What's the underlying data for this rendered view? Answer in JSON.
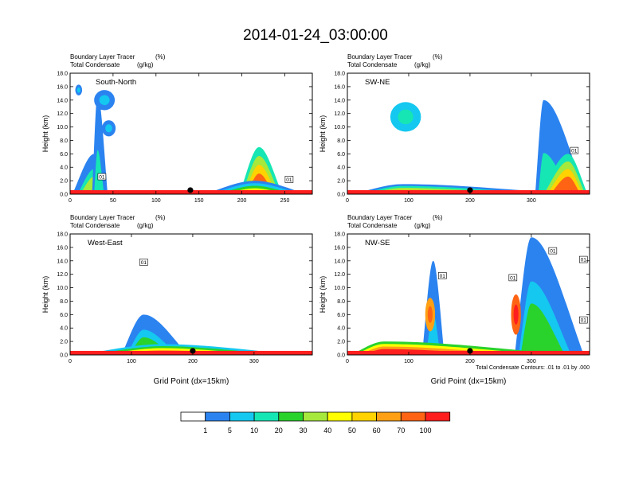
{
  "title": "2014-01-24_03:00:00",
  "colors": {
    "scale": [
      "#ffffff",
      "#2b83f0",
      "#14c8f0",
      "#16e6b4",
      "#2ad22c",
      "#a6e83c",
      "#ffff00",
      "#ffd200",
      "#ffa014",
      "#ff6414",
      "#ff1e1e"
    ],
    "contour": "#000000",
    "frame": "#000000"
  },
  "colorbar": {
    "labels": [
      "1",
      "5",
      "10",
      "20",
      "30",
      "40",
      "50",
      "60",
      "70",
      "100"
    ]
  },
  "footnote": "Total Condensate Contours: .01 to .01 by .000",
  "chart_data": [
    {
      "type": "heatmap",
      "name": "South-North",
      "label": "South-North",
      "subtitle_left_1": "Boundary Layer Tracer",
      "subtitle_right_1": "(%)",
      "subtitle_left_2": "Total Condensate",
      "subtitle_right_2": "(g/kg)",
      "ylabel": "Height (km)",
      "xlabel": "",
      "xlim": [
        0,
        282
      ],
      "ylim": [
        0,
        18
      ],
      "xticks": [
        "0",
        "50",
        "100",
        "150",
        "200",
        "250"
      ],
      "xtick_values": [
        0,
        50,
        100,
        150,
        200,
        250
      ],
      "yticks": [
        "0.0",
        "2.0",
        "4.0",
        "6.0",
        "8.0",
        "10.0",
        "12.0",
        "14.0",
        "16.0",
        "18.0"
      ],
      "marker_x": 140,
      "plumes": [
        {
          "x0": 0,
          "x1": 45,
          "top": 6.0,
          "peak": 28,
          "level": 5
        },
        {
          "x0": 25,
          "x1": 45,
          "top": 15.0,
          "peak": 32,
          "level": 3
        },
        {
          "x0": 195,
          "x1": 250,
          "top": 7.0,
          "peak": 220,
          "level": 9
        },
        {
          "x0": 150,
          "x1": 282,
          "top": 2.0,
          "peak": 215,
          "level": 6
        }
      ],
      "blobs": [
        {
          "cx": 10,
          "cy": 15.5,
          "rx": 4,
          "ry": 0.8,
          "level": 1
        },
        {
          "cx": 40,
          "cy": 14.0,
          "rx": 12,
          "ry": 1.5,
          "level": 1
        },
        {
          "cx": 45,
          "cy": 9.8,
          "rx": 8,
          "ry": 1.2,
          "level": 1
        }
      ],
      "contour_labels": [
        {
          "x": 37,
          "y": 2.6,
          "text": "01"
        },
        {
          "x": 255,
          "y": 2.2,
          "text": "01"
        }
      ]
    },
    {
      "type": "heatmap",
      "name": "SW-NE",
      "label": "SW-NE",
      "subtitle_left_1": "Boundary Layer Tracer",
      "subtitle_right_1": "(%)",
      "subtitle_left_2": "Total Condensate",
      "subtitle_right_2": "(g/kg)",
      "ylabel": "Height (km)",
      "xlabel": "",
      "xlim": [
        0,
        395
      ],
      "ylim": [
        0,
        18
      ],
      "xticks": [
        "0",
        "100",
        "200",
        "300"
      ],
      "xtick_values": [
        0,
        100,
        200,
        300
      ],
      "yticks": [
        "0.0",
        "2.0",
        "4.0",
        "6.0",
        "8.0",
        "10.0",
        "12.0",
        "14.0",
        "16.0",
        "18.0"
      ],
      "marker_x": 200,
      "plumes": [
        {
          "x0": 305,
          "x1": 395,
          "top": 14.0,
          "peak": 320,
          "level": 3
        },
        {
          "x0": 310,
          "x1": 395,
          "top": 6.0,
          "peak": 360,
          "level": 9
        },
        {
          "x0": 0,
          "x1": 395,
          "top": 1.5,
          "peak": 90,
          "level": 7
        }
      ],
      "blobs": [
        {
          "cx": 95,
          "cy": 11.5,
          "rx": 25,
          "ry": 2.2,
          "level": 2
        }
      ],
      "contour_labels": [
        {
          "x": 370,
          "y": 6.5,
          "text": "01"
        }
      ]
    },
    {
      "type": "heatmap",
      "name": "West-East",
      "label": "West-East",
      "subtitle_left_1": "Boundary Layer Tracer",
      "subtitle_right_1": "(%)",
      "subtitle_left_2": "Total Condensate",
      "subtitle_right_2": "(g/kg)",
      "ylabel": "Height (km)",
      "xlabel": "Grid Point (dx=15km)",
      "xlim": [
        0,
        395
      ],
      "ylim": [
        0,
        18
      ],
      "xticks": [
        "0",
        "100",
        "200",
        "300"
      ],
      "xtick_values": [
        0,
        100,
        200,
        300
      ],
      "yticks": [
        "0.0",
        "2.0",
        "4.0",
        "6.0",
        "8.0",
        "10.0",
        "12.0",
        "14.0",
        "16.0",
        "18.0"
      ],
      "marker_x": 200,
      "plumes": [
        {
          "x0": 80,
          "x1": 200,
          "top": 6.0,
          "peak": 120,
          "level": 4
        },
        {
          "x0": 0,
          "x1": 395,
          "top": 1.6,
          "peak": 150,
          "level": 8
        }
      ],
      "blobs": [],
      "contour_labels": [
        {
          "x": 120,
          "y": 13.8,
          "text": "01"
        }
      ]
    },
    {
      "type": "heatmap",
      "name": "NW-SE",
      "label": "NW-SE",
      "subtitle_left_1": "Boundary Layer Tracer",
      "subtitle_right_1": "(%)",
      "subtitle_left_2": "Total Condensate",
      "subtitle_right_2": "(g/kg)",
      "ylabel": "Height (km)",
      "xlabel": "Grid Point (dx=15km)",
      "xlim": [
        0,
        395
      ],
      "ylim": [
        0,
        18
      ],
      "xticks": [
        "0",
        "100",
        "200",
        "300"
      ],
      "xtick_values": [
        0,
        100,
        200,
        300
      ],
      "yticks": [
        "0.0",
        "2.0",
        "4.0",
        "6.0",
        "8.0",
        "10.0",
        "12.0",
        "14.0",
        "16.0",
        "18.0"
      ],
      "marker_x": 200,
      "plumes": [
        {
          "x0": 120,
          "x1": 160,
          "top": 14.0,
          "peak": 140,
          "level": 2
        },
        {
          "x0": 270,
          "x1": 395,
          "top": 17.5,
          "peak": 300,
          "level": 4
        },
        {
          "x0": 0,
          "x1": 395,
          "top": 2.0,
          "peak": 60,
          "level": 10
        }
      ],
      "blobs": [
        {
          "cx": 135,
          "cy": 6.0,
          "rx": 8,
          "ry": 2.5,
          "level": 8
        },
        {
          "cx": 275,
          "cy": 6.0,
          "rx": 8,
          "ry": 3.0,
          "level": 9
        }
      ],
      "contour_labels": [
        {
          "x": 155,
          "y": 11.8,
          "text": "01"
        },
        {
          "x": 270,
          "y": 11.5,
          "text": "01"
        },
        {
          "x": 335,
          "y": 15.5,
          "text": "01"
        },
        {
          "x": 385,
          "y": 14.2,
          "text": "01"
        },
        {
          "x": 385,
          "y": 5.2,
          "text": "01"
        }
      ]
    }
  ]
}
